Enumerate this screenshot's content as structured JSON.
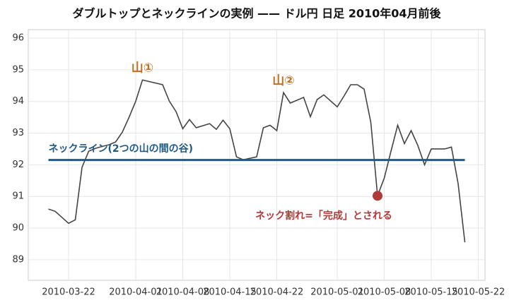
{
  "chart_data": {
    "type": "line",
    "title": "ダブルトップとネックラインの実例 —— ドル円 日足 2010年04月前後",
    "x": [
      "2010-03-19",
      "2010-03-20",
      "2010-03-22",
      "2010-03-23",
      "2010-03-24",
      "2010-03-25",
      "2010-03-26",
      "2010-03-27",
      "2010-03-28",
      "2010-03-29",
      "2010-03-30",
      "2010-03-31",
      "2010-04-01",
      "2010-04-02",
      "2010-04-05",
      "2010-04-06",
      "2010-04-07",
      "2010-04-08",
      "2010-04-09",
      "2010-04-10",
      "2010-04-12",
      "2010-04-13",
      "2010-04-14",
      "2010-04-15",
      "2010-04-16",
      "2010-04-17",
      "2010-04-19",
      "2010-04-20",
      "2010-04-21",
      "2010-04-22",
      "2010-04-23",
      "2010-04-24",
      "2010-04-26",
      "2010-04-27",
      "2010-04-28",
      "2010-04-29",
      "2010-05-01",
      "2010-05-02",
      "2010-05-03",
      "2010-05-04",
      "2010-05-05",
      "2010-05-06",
      "2010-05-07",
      "2010-05-08",
      "2010-05-09",
      "2010-05-10",
      "2010-05-11",
      "2010-05-12",
      "2010-05-13",
      "2010-05-14",
      "2010-05-15",
      "2010-05-17",
      "2010-05-18",
      "2010-05-19",
      "2010-05-20"
    ],
    "values": [
      90.6,
      90.53,
      90.15,
      90.26,
      91.92,
      92.43,
      92.52,
      92.58,
      92.63,
      92.72,
      93.03,
      93.5,
      94.01,
      94.68,
      94.53,
      94.01,
      93.68,
      93.14,
      93.43,
      93.17,
      93.3,
      93.12,
      93.41,
      93.14,
      92.25,
      92.16,
      92.25,
      93.17,
      93.25,
      93.08,
      94.28,
      93.95,
      94.13,
      93.52,
      94.06,
      94.21,
      93.83,
      94.17,
      94.53,
      94.53,
      94.39,
      93.34,
      91.02,
      91.58,
      92.43,
      93.25,
      92.67,
      93.08,
      92.61,
      92.0,
      92.5,
      92.5,
      92.56,
      91.4,
      89.55
    ],
    "color": "#444444",
    "neckline": {
      "value": 92.15,
      "x": [
        "2010-03-19",
        "2010-05-20"
      ],
      "color": "#1f5a85"
    },
    "break_point": {
      "x": "2010-05-07",
      "y": 91.02,
      "color": "#b03a3a"
    },
    "annotations": [
      {
        "text": "山①",
        "x": "2010-04-02",
        "y": 95.05,
        "color": "#c07020"
      },
      {
        "text": "山②",
        "x": "2010-04-23",
        "y": 94.65,
        "color": "#c07020"
      },
      {
        "text": "ネックライン(2つの山の間の谷)",
        "x": "2010-03-19",
        "y": 92.5,
        "color": "#1f5a85"
      },
      {
        "text": "ネック割れ=「完成」とされる",
        "x": "2010-04-29",
        "y": 90.38,
        "color": "#b03a3a"
      }
    ],
    "xlim": [
      "2010-03-16",
      "2010-05-23"
    ],
    "xticks": [
      "2010-03-22",
      "2010-04-01",
      "2010-04-08",
      "2010-04-15",
      "2010-04-22",
      "2010-05-01",
      "2010-05-08",
      "2010-05-15",
      "2010-05-22"
    ],
    "ylim": [
      88.35,
      96.27
    ],
    "yticks": [
      89,
      90,
      91,
      92,
      93,
      94,
      95,
      96
    ],
    "grid": true
  }
}
